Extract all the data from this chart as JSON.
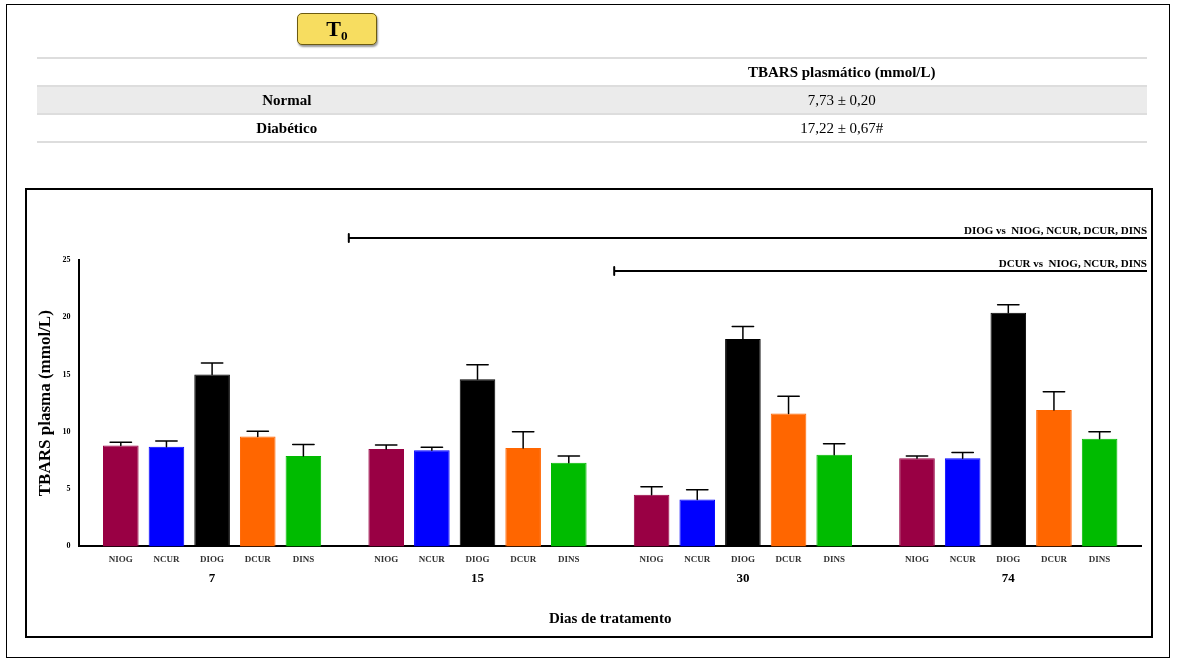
{
  "chart_data": [
    {
      "type": "other",
      "title": "T₀",
      "annotations": [
        "TBARS plasmático (mmol/L)",
        "Normal",
        "7,73 ± 0,20",
        "Diabético",
        "17,22 ± 0,67#"
      ]
    },
    {
      "type": "bar",
      "xlabel": "Dias de tratamento",
      "ylabel": "TBARS plasma (mmol/L)",
      "categories": [
        "7",
        "15",
        "30",
        "74"
      ],
      "series": [
        {
          "name": "NIOG",
          "color": "#990044",
          "values": [
            8.8,
            8.5,
            4.5,
            7.7
          ],
          "errors": [
            0.3,
            0.35,
            0.7,
            0.2
          ]
        },
        {
          "name": "NCUR",
          "color": "#0000ff",
          "values": [
            8.7,
            8.4,
            4.1,
            7.7
          ],
          "errors": [
            0.5,
            0.25,
            0.85,
            0.5
          ]
        },
        {
          "name": "DIOG",
          "color": "#000000",
          "values": [
            15.0,
            14.6,
            18.1,
            20.4
          ],
          "errors": [
            1.0,
            1.25,
            1.1,
            0.7
          ]
        },
        {
          "name": "DCUR",
          "color": "#ff6600",
          "values": [
            9.6,
            8.6,
            11.6,
            11.9
          ],
          "errors": [
            0.45,
            1.4,
            1.5,
            1.6
          ]
        },
        {
          "name": "DINS",
          "color": "#00bb00",
          "values": [
            7.9,
            7.3,
            8.0,
            9.4
          ],
          "errors": [
            1.0,
            0.6,
            0.95,
            0.6
          ]
        }
      ],
      "ylim": [
        0,
        25
      ],
      "yticks": [
        0,
        5,
        10,
        15,
        20,
        25
      ],
      "grid": false,
      "legend": false,
      "annotations": [
        "DIOG vs  NIOG, NCUR, DCUR, DINS",
        "DCUR vs  NIOG, NCUR, DINS"
      ]
    }
  ]
}
